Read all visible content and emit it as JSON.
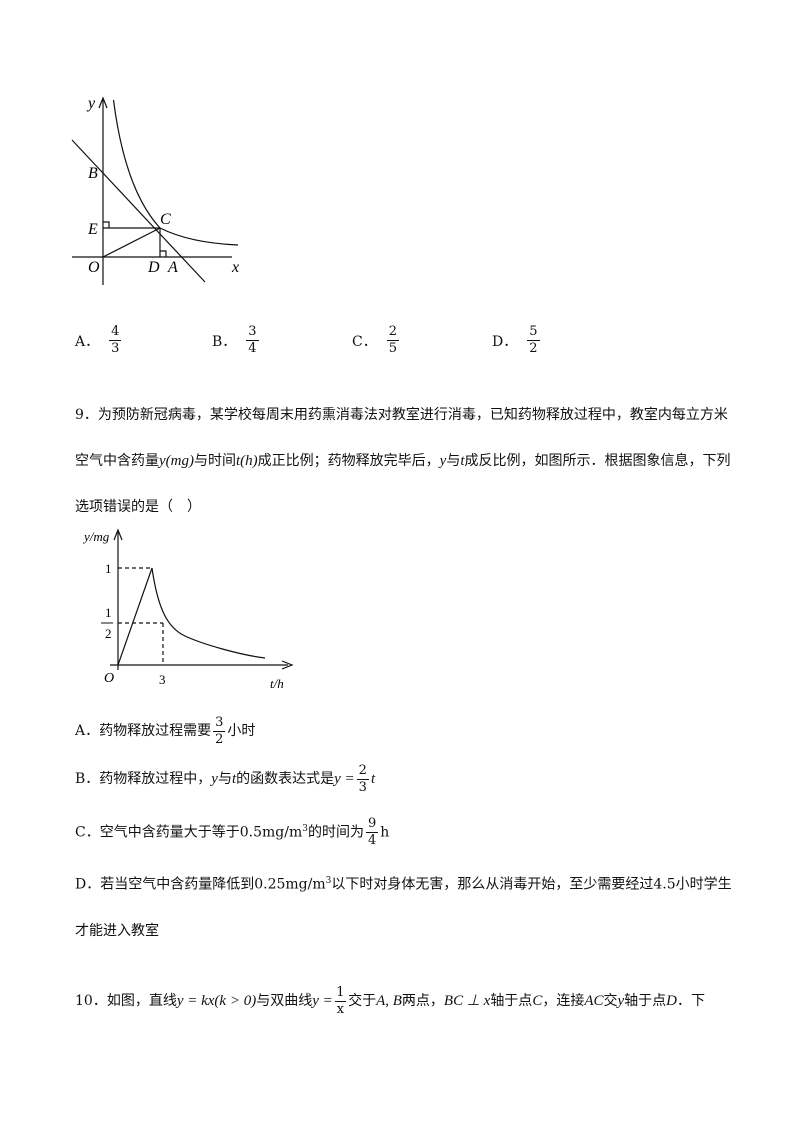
{
  "figure1": {
    "labels": [
      "y",
      "B",
      "E",
      "C",
      "O",
      "D",
      "A",
      "x"
    ]
  },
  "q8_options": [
    {
      "letter": "A．",
      "num": "4",
      "den": "3"
    },
    {
      "letter": "B．",
      "num": "3",
      "den": "4"
    },
    {
      "letter": "C．",
      "num": "2",
      "den": "5"
    },
    {
      "letter": "D．",
      "num": "5",
      "den": "2"
    }
  ],
  "q9": {
    "stem": [
      {
        "text": "9．为预防新冠病毒，某学校每周末用药熏消毒法对教室进行消毒，已知药物释放过程中，教室内每立方米空气中含药量"
      },
      {
        "math": "y(mg)"
      },
      {
        "text": "与时间"
      },
      {
        "math": "t(h)"
      },
      {
        "text": "成正比例；药物释放完毕后，"
      },
      {
        "math": "y"
      },
      {
        "text": "与"
      },
      {
        "math": "t"
      },
      {
        "text": "成反比例，如图所示．根据图象信息，下列选项错误的是（　）"
      }
    ],
    "figure_labels": {
      "y_axis": "y/mg",
      "one": "1",
      "half_num": "1",
      "half_den": "2",
      "origin": "O",
      "three": "3",
      "x_axis": "t/h"
    },
    "options": [
      [
        {
          "text": "A．药物释放过程需要"
        },
        {
          "num": "3",
          "den": "2"
        },
        {
          "text": "小时"
        }
      ],
      [
        {
          "text": "B．药物释放过程中，"
        },
        {
          "math": "y"
        },
        {
          "text": "与"
        },
        {
          "math": "t"
        },
        {
          "text": "的函数表达式是"
        },
        {
          "math": "y ="
        },
        {
          "num": "2",
          "den": "3"
        },
        {
          "math": "t"
        }
      ],
      [
        {
          "text": "C．空气中含药量大于等于"
        },
        {
          "text": "0.5mg/m"
        },
        {
          "sup": "3"
        },
        {
          "text": "的时间为"
        },
        {
          "num": "9",
          "den": "4"
        },
        {
          "text": "h"
        }
      ],
      [
        {
          "text": "D．若当空气中含药量降低到"
        },
        {
          "text": "0.25mg/m"
        },
        {
          "sup": "3"
        },
        {
          "text": "以下时对身体无害，那么从消毒开始，至少需要经过4.5小时学生才能进入教室"
        }
      ]
    ]
  },
  "q10": {
    "stem": [
      {
        "text": "10．如图，直线"
      },
      {
        "math": "y = kx(k > 0)"
      },
      {
        "text": "与双曲线"
      },
      {
        "math": "y ="
      },
      {
        "num": "1",
        "den": "x"
      },
      {
        "text": "交于"
      },
      {
        "math": "A, B"
      },
      {
        "text": "两点，"
      },
      {
        "math": "BC ⊥ x"
      },
      {
        "text": "轴于点"
      },
      {
        "math": "C"
      },
      {
        "text": "，连接"
      },
      {
        "math": "AC"
      },
      {
        "text": "交"
      },
      {
        "math": "y"
      },
      {
        "text": "轴于点"
      },
      {
        "math": "D"
      },
      {
        "text": "．下"
      }
    ]
  }
}
